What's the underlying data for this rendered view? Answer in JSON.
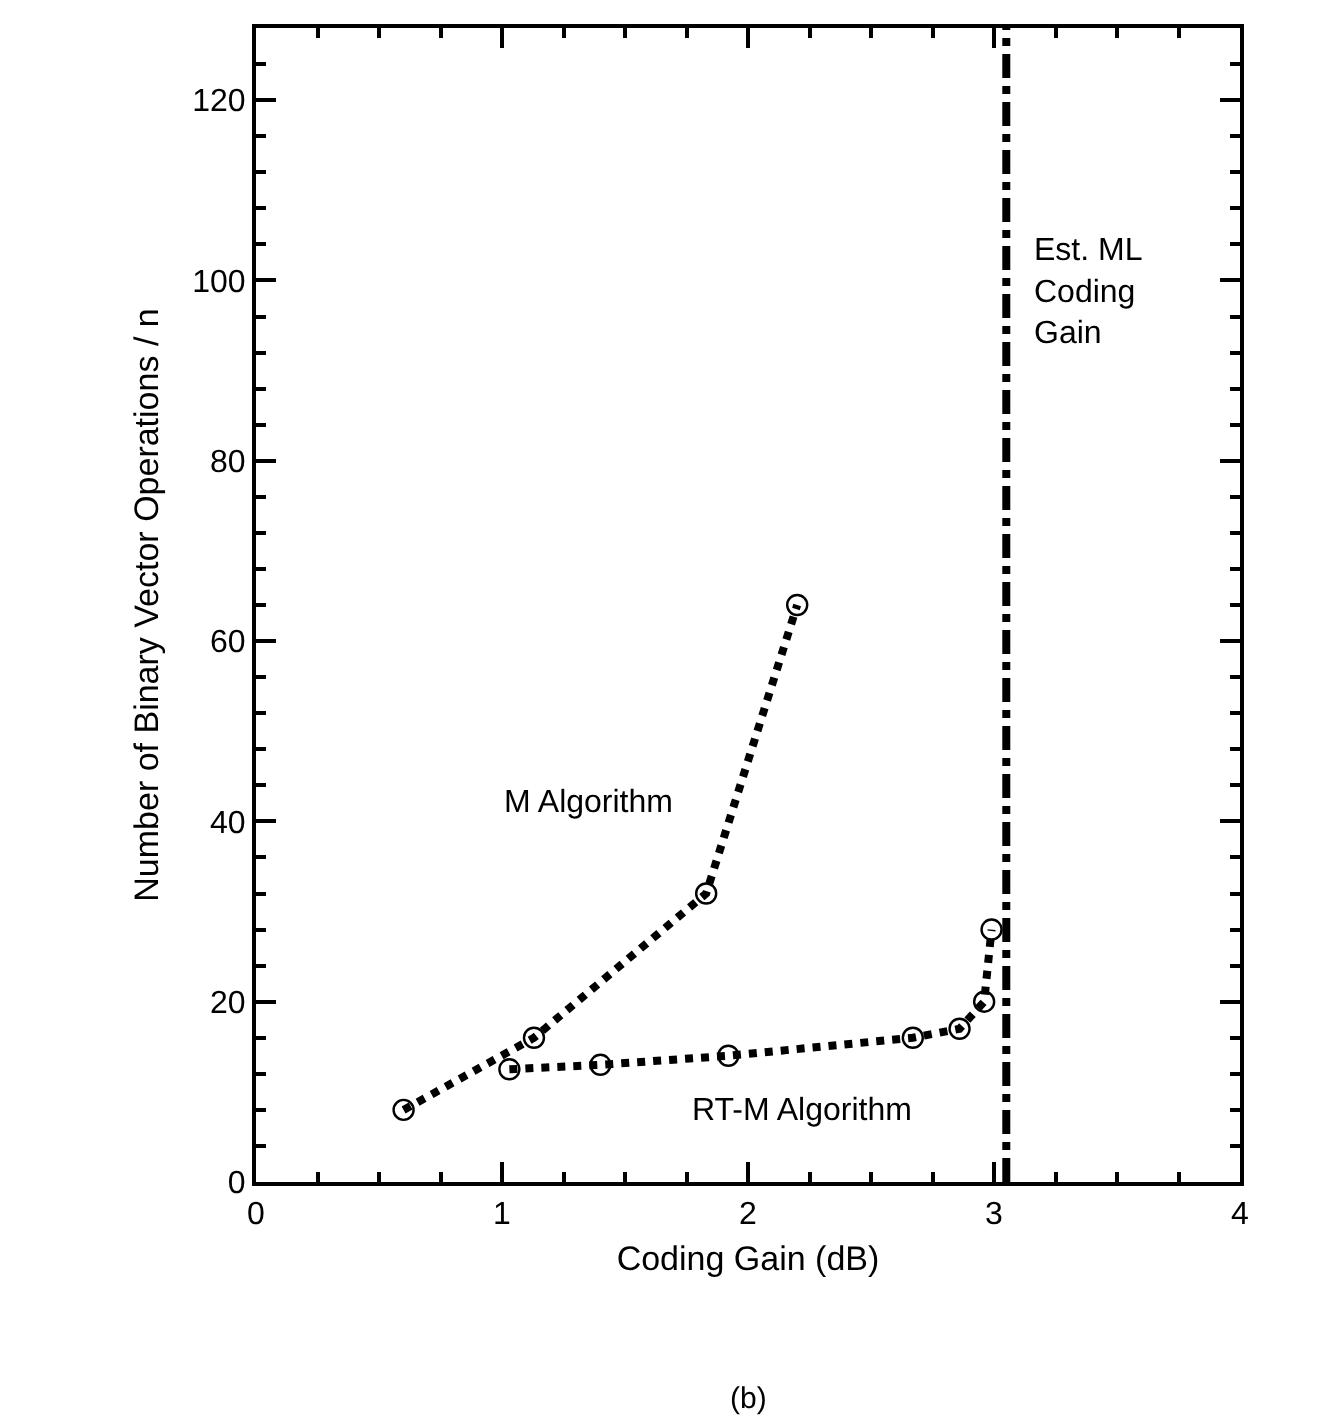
{
  "chart_data": {
    "type": "line",
    "xlabel": "Coding Gain (dB)",
    "ylabel": "Number of Binary Vector Operations / n",
    "xlim": [
      0,
      4
    ],
    "xticks": [
      0,
      1,
      2,
      3,
      4
    ],
    "ylim": [
      0,
      128
    ],
    "yticks": [
      0,
      20,
      40,
      60,
      80,
      100,
      120
    ],
    "grid": false,
    "legend": false,
    "marker": "circle",
    "line_style": "dotted",
    "series": [
      {
        "name": "M Algorithm",
        "color": "#000000",
        "x": [
          0.6,
          1.13,
          1.83,
          2.2
        ],
        "values": [
          8,
          16,
          32,
          64
        ]
      },
      {
        "name": "RT-M Algorithm",
        "color": "#000000",
        "x": [
          1.03,
          1.4,
          1.92,
          2.67,
          2.86,
          2.96,
          2.99
        ],
        "values": [
          12.5,
          13,
          14,
          16,
          17,
          20,
          28
        ]
      }
    ],
    "ref_lines": [
      {
        "axis": "x",
        "value": 3.05,
        "label": "Est. ML\nCoding\nGain",
        "color": "#000000",
        "line_style": "dashdot"
      }
    ],
    "annotations": [
      "(b)"
    ]
  }
}
